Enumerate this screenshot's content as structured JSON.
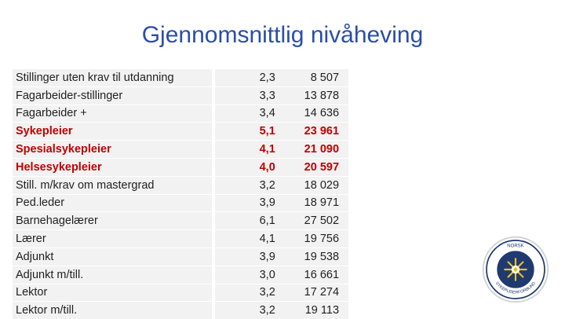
{
  "slide": {
    "title": "Gjennomsnittlig nivåheving"
  },
  "table": {
    "rows": [
      {
        "label": "Stillinger uten krav til utdanning",
        "ratio": "2,3",
        "value": "8 507",
        "highlight": false
      },
      {
        "label": "Fagarbeider-stillinger",
        "ratio": "3,3",
        "value": "13 878",
        "highlight": false
      },
      {
        "label": "Fagarbeider +",
        "ratio": "3,4",
        "value": "14 636",
        "highlight": false
      },
      {
        "label": "Sykepleier",
        "ratio": "5,1",
        "value": "23 961",
        "highlight": true
      },
      {
        "label": "Spesialsykepleier",
        "ratio": "4,1",
        "value": "21 090",
        "highlight": true
      },
      {
        "label": "Helsesykepleier",
        "ratio": "4,0",
        "value": "20 597",
        "highlight": true
      },
      {
        "label": "Still. m/krav om mastergrad",
        "ratio": "3,2",
        "value": "18 029",
        "highlight": false
      },
      {
        "label": "Ped.leder",
        "ratio": "3,9",
        "value": "18 971",
        "highlight": false
      },
      {
        "label": "Barnehagelærer",
        "ratio": "6,1",
        "value": "27 502",
        "highlight": false
      },
      {
        "label": "Lærer",
        "ratio": "4,1",
        "value": "19 756",
        "highlight": false
      },
      {
        "label": "Adjunkt",
        "ratio": "3,9",
        "value": "19 538",
        "highlight": false
      },
      {
        "label": "Adjunkt m/till.",
        "ratio": "3,0",
        "value": "16 661",
        "highlight": false
      },
      {
        "label": "Lektor",
        "ratio": "3,2",
        "value": "17 274",
        "highlight": false
      },
      {
        "label": "Lektor m/till.",
        "ratio": "3,2",
        "value": "19 113",
        "highlight": false
      }
    ]
  },
  "logo": {
    "top_text": "NORSK",
    "bottom_text": "SYKEPLEIERFORBUND",
    "icon": "nsf-emblem-icon",
    "colors": {
      "ring": "#1f3a6e",
      "accent": "#e6c229"
    }
  },
  "colors": {
    "title": "#2a4ea8",
    "highlight": "#c00000",
    "table_bg": "#f2f2f2"
  }
}
